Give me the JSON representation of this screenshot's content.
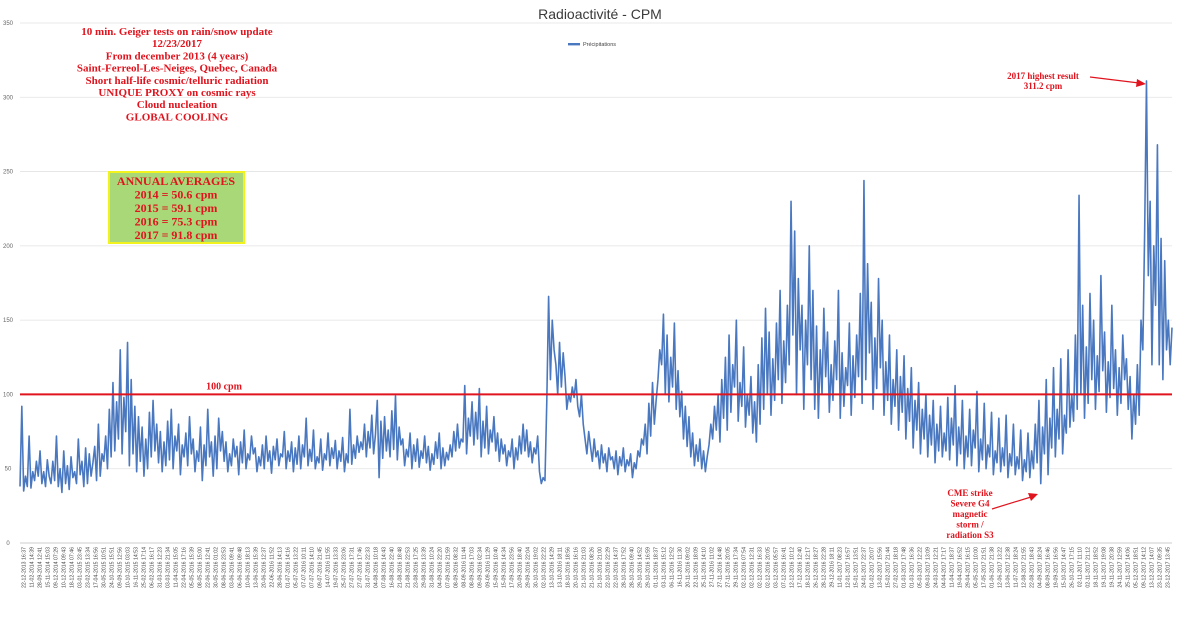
{
  "chart_data": {
    "type": "line",
    "title": "Radioactivité - CPM",
    "xlabel": "",
    "ylabel": "",
    "ylim": [
      0,
      350
    ],
    "yticks": [
      "0",
      "50",
      "100",
      "150",
      "200",
      "250",
      "300",
      "350"
    ],
    "grid": true,
    "legend_position": "top-center",
    "series": [
      {
        "name": "Précipitations",
        "color": "#4a78c0",
        "values": [
          38,
          92,
          35,
          45,
          38,
          72,
          37,
          48,
          42,
          55,
          45,
          62,
          40,
          48,
          38,
          56,
          45,
          40,
          55,
          42,
          72,
          38,
          50,
          34,
          62,
          40,
          52,
          36,
          58,
          44,
          48,
          40,
          70,
          46,
          55,
          38,
          64,
          40,
          60,
          45,
          54,
          65,
          42,
          80,
          45,
          60,
          55,
          72,
          50,
          90,
          58,
          108,
          62,
          95,
          70,
          130,
          60,
          98,
          75,
          135,
          52,
          110,
          60,
          92,
          48,
          85,
          55,
          78,
          45,
          70,
          50,
          88,
          58,
          96,
          62,
          80,
          54,
          75,
          48,
          68,
          52,
          82,
          56,
          90,
          50,
          72,
          62,
          80,
          46,
          66,
          58,
          74,
          52,
          85,
          60,
          70,
          48,
          62,
          55,
          78,
          42,
          66,
          52,
          90,
          58,
          68,
          45,
          72,
          50,
          84,
          62,
          75,
          55,
          68,
          48,
          60,
          52,
          70,
          58,
          65,
          46,
          68,
          54,
          76,
          50,
          60,
          56,
          72,
          60,
          64,
          48,
          58,
          52,
          66,
          50,
          72,
          55,
          62,
          47,
          65,
          56,
          70,
          52,
          60,
          58,
          75,
          50,
          62,
          55,
          68,
          48,
          64,
          53,
          72,
          50,
          66,
          58,
          84,
          52,
          63,
          55,
          76,
          50,
          58,
          54,
          70,
          49,
          60,
          56,
          74,
          52,
          64,
          57,
          69,
          50,
          62,
          55,
          71,
          48,
          60,
          54,
          90,
          53,
          66,
          57,
          72,
          61,
          68,
          63,
          80,
          58,
          75,
          64,
          86,
          60,
          73,
          96,
          44,
          82,
          57,
          85,
          62,
          76,
          58,
          89,
          63,
          99,
          56,
          78,
          66,
          70,
          52,
          63,
          58,
          74,
          50,
          66,
          55,
          70,
          51,
          62,
          57,
          72,
          54,
          65,
          49,
          60,
          53,
          68,
          57,
          74,
          50,
          64,
          52,
          61,
          56,
          66,
          58,
          75,
          62,
          80,
          64,
          70,
          68,
          106,
          60,
          84,
          72,
          95,
          66,
          88,
          70,
          104,
          58,
          82,
          64,
          92,
          60,
          76,
          68,
          85,
          62,
          74,
          55,
          70,
          60,
          66,
          52,
          62,
          58,
          70,
          50,
          64,
          56,
          72,
          60,
          80,
          62,
          76,
          58,
          68,
          54,
          64,
          60,
          72,
          48,
          40,
          44,
          42,
          95,
          166,
          110,
          150,
          130,
          120,
          100,
          135,
          105,
          128,
          112,
          90,
          100,
          95,
          105,
          98,
          110,
          92,
          85,
          100,
          80,
          70,
          60,
          75,
          65,
          55,
          70,
          58,
          62,
          50,
          66,
          54,
          60,
          48,
          64,
          56,
          58,
          50,
          62,
          46,
          58,
          52,
          64,
          48,
          56,
          52,
          60,
          44,
          54,
          50,
          62,
          58,
          70,
          66,
          80,
          60,
          94,
          72,
          108,
          80,
          96,
          110,
          130,
          120,
          154,
          100,
          140,
          95,
          125,
          105,
          148,
          90,
          116,
          85,
          102,
          70,
          92,
          65,
          85,
          58,
          74,
          52,
          66,
          55,
          70,
          50,
          62,
          48,
          58,
          66,
          80,
          70,
          92,
          76,
          100,
          68,
          110,
          84,
          125,
          76,
          140,
          88,
          120,
          105,
          150,
          82,
          108,
          92,
          132,
          78,
          100,
          86,
          112,
          74,
          95,
          68,
          120,
          80,
          138,
          90,
          158,
          100,
          142,
          86,
          124,
          96,
          148,
          110,
          170,
          94,
          136,
          108,
          160,
          120,
          230,
          140,
          210,
          100,
          178,
          130,
          160,
          90,
          150,
          120,
          200,
          110,
          170,
          90,
          146,
          84,
          130,
          100,
          158,
          112,
          142,
          88,
          120,
          96,
          136,
          110,
          170,
          84,
          128,
          92,
          118,
          106,
          148,
          86,
          126,
          98,
          140,
          112,
          168,
          94,
          244,
          110,
          188,
          128,
          162,
          90,
          138,
          104,
          178,
          118,
          150,
          86,
          122,
          96,
          140,
          80,
          110,
          92,
          130,
          76,
          112,
          88,
          126,
          70,
          104,
          82,
          118,
          64,
          96,
          76,
          108,
          60,
          90,
          70,
          100,
          58,
          86,
          66,
          96,
          54,
          80,
          62,
          92,
          58,
          74,
          62,
          98,
          56,
          84,
          66,
          106,
          52,
          78,
          60,
          96,
          50,
          72,
          58,
          90,
          52,
          76,
          64,
          102,
          48,
          70,
          56,
          94,
          50,
          66,
          58,
          88,
          46,
          62,
          54,
          84,
          48,
          64,
          52,
          86,
          44,
          60,
          52,
          80,
          46,
          58,
          50,
          76,
          42,
          56,
          48,
          74,
          44,
          62,
          50,
          80,
          54,
          96,
          40,
          78,
          60,
          110,
          46,
          84,
          64,
          118,
          58,
          90,
          70,
          124,
          60,
          86,
          74,
          130,
          78,
          100,
          82,
          140,
          90,
          234,
          100,
          160,
          84,
          132,
          94,
          168,
          110,
          150,
          90,
          126,
          102,
          180,
          116,
          142,
          88,
          122,
          98,
          160,
          104,
          130,
          86,
          118,
          94,
          140,
          110,
          124,
          90,
          112,
          70,
          100,
          80,
          120,
          86,
          150,
          130,
          210,
          311,
          180,
          230,
          120,
          200,
          160,
          268,
          120,
          205,
          110,
          190,
          130,
          150,
          120,
          145
        ]
      }
    ],
    "x_tick_labels": [
      "22-12-2013 16:37",
      "11-02-2014 14:39",
      "28-09-2014 12:41",
      "15-11-2014 15:03",
      "09-12-2014 07:29",
      "10-12-2014 09:43",
      "18-12-2014 07:46",
      "03-01-2015 23:45",
      "23-02-2015 13:34",
      "17-04-2015 16:56",
      "30-05-2015 10:51",
      "24-10-2015 15:51",
      "09-09-2015 12:56",
      "10-10-2015 03:03",
      "16-11-2015 14:53",
      "25-02-2016 17:14",
      "06-02-2016 16:17",
      "31-03-2016 12:23",
      "03-03-2016 21:34",
      "11-04-2016 15:05",
      "22-04-2016 17:16",
      "05-05-2016 15:39",
      "08-05-2016 15:00",
      "22-06-2016 12:41",
      "30-05-2016 01:02",
      "08-06-2016 23:53",
      "03-06-2016 09:41",
      "06-06-2016 09:48",
      "10-06-2016 18:13",
      "13-06-2016 15:39",
      "20-06-2016 12:37",
      "22-06-2016 11:52",
      "28-06-2016 14:13",
      "01-07-2016 14:16",
      "05-07-2016 13:22",
      "07-07-2016 10:11",
      "07-07-2016 14:10",
      "09-07-2016 21:45",
      "14-07-2016 11:55",
      "19-07-2016 13:33",
      "25-07-2016 23:06",
      "27-07-2016 17:31",
      "27-07-2016 17:46",
      "31-07-2016 22:33",
      "04-08-2016 10:18",
      "07-08-2016 14:43",
      "16-08-2016 22:40",
      "21-08-2016 18:48",
      "21-08-2016 22:53",
      "23-08-2016 17:25",
      "29-08-2016 13:39",
      "31-08-2016 10:24",
      "04-09-2016 22:20",
      "07-09-2016 21:59",
      "08-09-2016 08:32",
      "08-09-2016 11:44",
      "08-09-2016 17:03",
      "09-09-2016 02:34",
      "09-09-2016 11:29",
      "15-09-2016 10:40",
      "15-09-2016 14:34",
      "17-09-2016 23:56",
      "20-09-2016 18:40",
      "29-09-2016 22:04",
      "30-10-2016 19:02",
      "02-10-2016 22:22",
      "13-10-2016 14:29",
      "13-10-2016 18:11",
      "18-10-2016 18:56",
      "20-10-2016 16:16",
      "21-10-2016 21:03",
      "21-10-2016 08:26",
      "21-10-2016 21:00",
      "22-10-2016 22:29",
      "22-10-2016 14:37",
      "28-10-2016 17:52",
      "28-10-2016 09:40",
      "29-10-2016 14:52",
      "29-10-2016 16:59",
      "01-11-2016 18:37",
      "03-11-2016 15:12",
      "06-11-2016 12:52",
      "16-11-2016 11:30",
      "20-11-2016 09:02",
      "22-11-2016 18:09",
      "25-11-2016 14:10",
      "27-11-2016 11:02",
      "27-11-2016 14:48",
      "27-11-2016 20:05",
      "29-11-2016 17:34",
      "02-12-2016 07:54",
      "02-12-2016 12:31",
      "02-12-2016 16:33",
      "02-12-2016 20:05",
      "03-12-2016 05:57",
      "07-12-2016 16:41",
      "12-12-2016 10:12",
      "17-12-2016 12:40",
      "18-12-2016 12:17",
      "26-12-2016 18:27",
      "28-12-2016 22:28",
      "29-12-2016 18:11",
      "11-01-2017 08:23",
      "12-01-2017 16:57",
      "15-01-2017 13:51",
      "24-01-2017 22:37",
      "01-02-2017 20:07",
      "13-02-2017 15:56",
      "15-02-2017 21:44",
      "27-02-2017 18:18",
      "01-03-2017 17:48",
      "01-03-2017 16:36",
      "05-03-2017 12:22",
      "09-03-2017 13:09",
      "24-03-2017 12:21",
      "04-04-2017 17:17",
      "11-04-2017 18:37",
      "19-04-2017 16:52",
      "29-04-2017 16:15",
      "05-05-2017 10:00",
      "17-05-2017 21:51",
      "01-06-2017 21:38",
      "12-06-2017 13:22",
      "13-06-2017 12:38",
      "11-07-2017 18:24",
      "12-08-2017 21:55",
      "22-08-2017 18:43",
      "04-09-2017 18:24",
      "08-09-2017 16:46",
      "19-09-2017 16:56",
      "15-10-2017 14:47",
      "26-10-2017 17:15",
      "02-11-2017 11:10",
      "02-11-2017 21:12",
      "18-11-2017 18:52",
      "19-11-2017 19:08",
      "19-11-2017 20:38",
      "24-11-2017 12:59",
      "25-11-2017 14:06",
      "05-12-2017 18:51",
      "09-12-2017 14:12",
      "13-12-2017 14:07",
      "23-12-2017 09:35",
      "23-12-2017 13:45"
    ],
    "reference_line": {
      "value": 100,
      "label": "100 cpm",
      "color": "#e0141e"
    }
  },
  "annotations": {
    "intro_lines": [
      "10 min. Geiger tests on rain/snow update",
      "12/23/2017",
      "From december 2013 (4 years)",
      "Saint-Ferreol-Les-Neiges, Quebec, Canada",
      "Short half-life cosmic/telluric radiation",
      "UNIQUE PROXY on cosmic rays",
      "Cloud nucleation",
      "GLOBAL COOLING"
    ],
    "averages_box": {
      "fill": "#a8d878",
      "border": "#f2f21e",
      "lines": [
        "ANNUAL AVERAGES",
        "2014 = 50.6 cpm",
        "2015 = 59.1 cpm",
        "2016 = 75.3 cpm",
        "2017 = 91.8 cpm"
      ]
    },
    "highest": {
      "lines": [
        "2017 highest result",
        "311.2 cpm"
      ]
    },
    "cme": {
      "lines": [
        "CME strike",
        "Severe G4",
        "magnetic",
        "storm /",
        "radiation S3"
      ]
    },
    "text_color": "#e0141e"
  }
}
